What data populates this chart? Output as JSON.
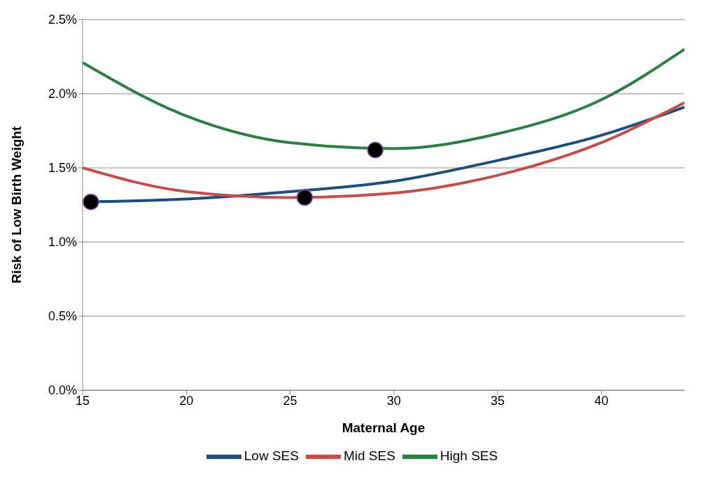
{
  "chart_data": {
    "type": "line",
    "xlabel": "Maternal Age",
    "ylabel": "Risk of Low Birth Weight",
    "xlim": [
      15,
      44
    ],
    "xticks": [
      15,
      20,
      25,
      30,
      35,
      40
    ],
    "ylim": [
      0,
      2.5
    ],
    "yticks": [
      {
        "value": 0,
        "label": "0.0%"
      },
      {
        "value": 0.5,
        "label": "0.5%"
      },
      {
        "value": 1,
        "label": "1.0%"
      },
      {
        "value": 1.5,
        "label": "1.5%"
      },
      {
        "value": 2,
        "label": "2.0%"
      },
      {
        "value": 2.5,
        "label": "2.5%"
      }
    ],
    "grid": "y",
    "legend": "bottom",
    "marker": "none",
    "line_style": "solid",
    "series": [
      {
        "name": "Low SES",
        "color": "#1f4e79",
        "x": [
          15,
          20,
          25,
          30,
          35,
          40,
          44
        ],
        "values": [
          1.27,
          1.29,
          1.34,
          1.41,
          1.55,
          1.72,
          1.91
        ]
      },
      {
        "name": "Mid SES",
        "color": "#c0504d",
        "x": [
          15,
          20,
          25,
          30,
          35,
          40,
          44
        ],
        "values": [
          1.5,
          1.34,
          1.3,
          1.33,
          1.45,
          1.67,
          1.94
        ]
      },
      {
        "name": "High SES",
        "color": "#2e7d45",
        "x": [
          15,
          20,
          25,
          30,
          35,
          40,
          44
        ],
        "values": [
          2.21,
          1.85,
          1.67,
          1.63,
          1.73,
          1.96,
          2.3
        ]
      },
      {
        "type": "scatter",
        "marker": "circle",
        "color": "#000000",
        "x": [
          15.4,
          25.7,
          29.1
        ],
        "values": [
          1.27,
          1.3,
          1.62
        ]
      }
    ]
  }
}
